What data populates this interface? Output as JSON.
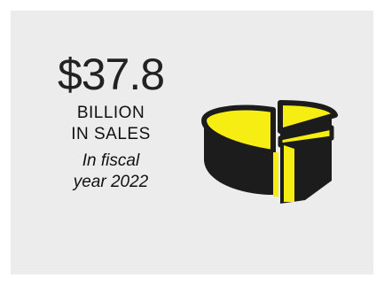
{
  "stat": {
    "amount": "$37.8",
    "label_line1": "BILLION",
    "label_line2": "IN SALES",
    "note_line1": "In fiscal",
    "note_line2": "year 2022"
  },
  "graphic": {
    "icon": "pie-chart-icon",
    "fill_color": "#f6ee12",
    "outline_color": "#1c1c1c",
    "background_color": "#ececec"
  }
}
